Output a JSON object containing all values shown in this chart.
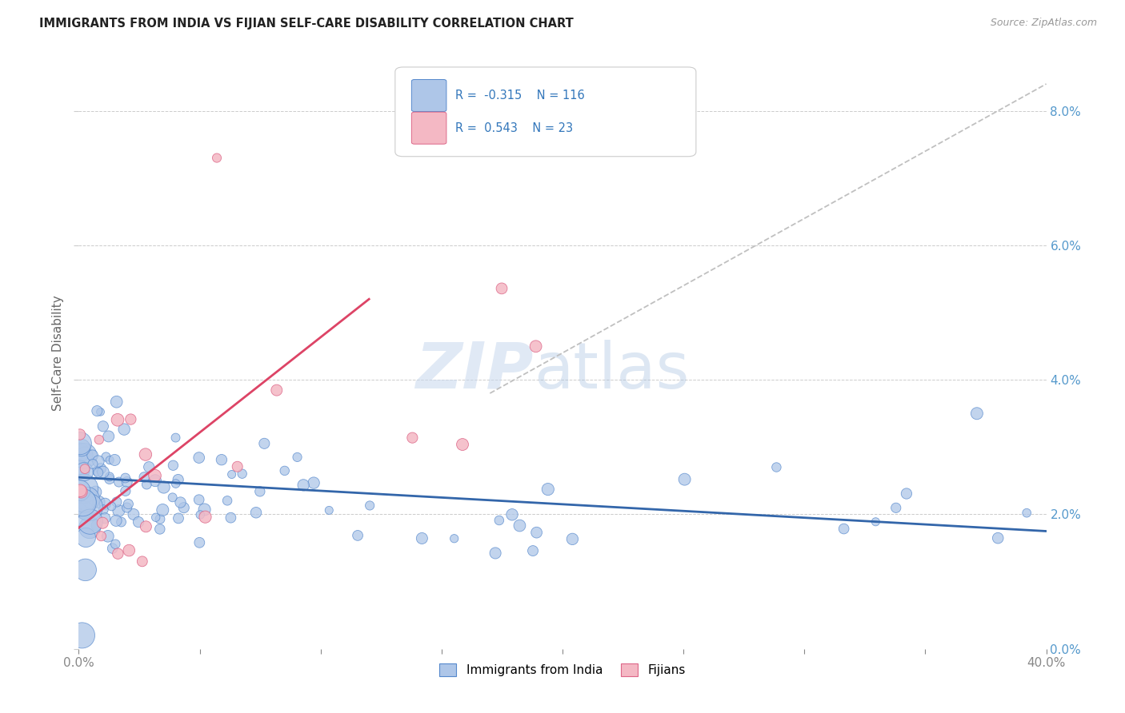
{
  "title": "IMMIGRANTS FROM INDIA VS FIJIAN SELF-CARE DISABILITY CORRELATION CHART",
  "source": "Source: ZipAtlas.com",
  "ylabel": "Self-Care Disability",
  "xlim": [
    0.0,
    40.0
  ],
  "ylim": [
    0.0,
    8.8
  ],
  "legend_blue_R": "-0.315",
  "legend_blue_N": "116",
  "legend_pink_R": "0.543",
  "legend_pink_N": "23",
  "legend_label_blue": "Immigrants from India",
  "legend_label_pink": "Fijians",
  "blue_color": "#aec6e8",
  "blue_line_color": "#3366aa",
  "blue_edge_color": "#5588cc",
  "pink_color": "#f4b8c4",
  "pink_line_color": "#dd4466",
  "pink_edge_color": "#dd6688",
  "dashed_line_color": "#c0c0c0",
  "grid_color": "#cccccc",
  "right_tick_color": "#5599cc",
  "title_color": "#222222",
  "source_color": "#999999",
  "ylabel_color": "#666666",
  "xtick_color": "#888888",
  "blue_line_start_y": 2.55,
  "blue_line_end_y": 1.75,
  "pink_line_start_y": 1.8,
  "pink_line_end_y": 5.2,
  "pink_line_end_x": 12.0,
  "dashed_start_x": 17.0,
  "dashed_start_y": 3.8,
  "dashed_end_x": 40.0,
  "dashed_end_y": 8.4
}
